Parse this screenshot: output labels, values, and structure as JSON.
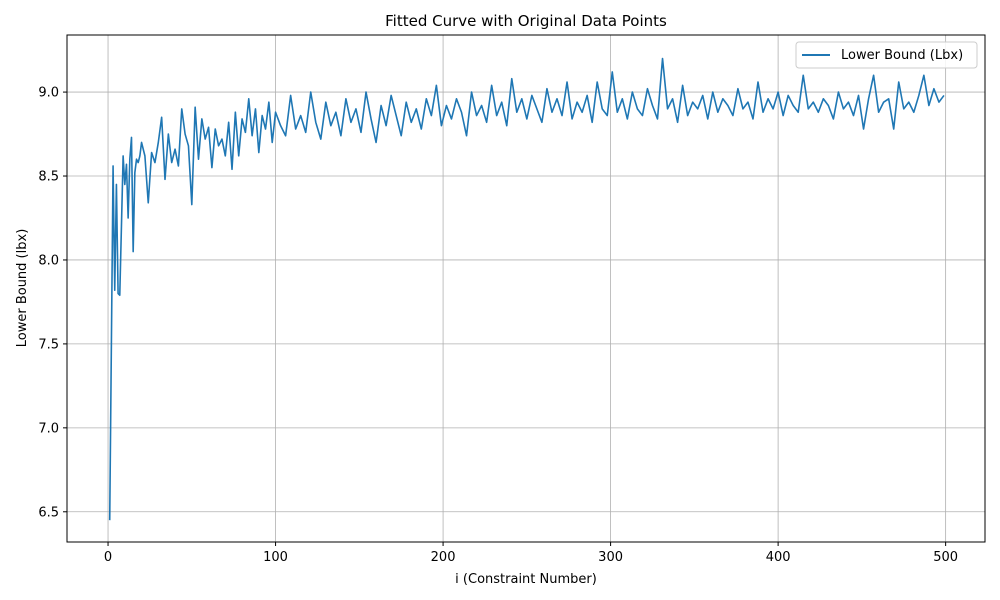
{
  "chart_data": {
    "type": "line",
    "title": "Fitted Curve with Original Data Points",
    "xlabel": "i (Constraint Number)",
    "ylabel": "Lower Bound (lbx)",
    "xlim": [
      -24.5,
      523.5
    ],
    "ylim": [
      6.32,
      9.34
    ],
    "xticks": [
      0,
      100,
      200,
      300,
      400,
      500
    ],
    "yticks": [
      6.5,
      7.0,
      7.5,
      8.0,
      8.5,
      9.0
    ],
    "xtick_labels": [
      "0",
      "100",
      "200",
      "300",
      "400",
      "500"
    ],
    "ytick_labels": [
      "6.5",
      "7.0",
      "7.5",
      "8.0",
      "8.5",
      "9.0"
    ],
    "grid": true,
    "legend_position": "top-right",
    "series": [
      {
        "name": "Lower Bound (Lbx)",
        "color": "#1f77b4",
        "x": [
          1,
          2,
          3,
          4,
          5,
          6,
          7,
          8,
          9,
          10,
          11,
          12,
          13,
          14,
          15,
          16,
          17,
          18,
          19,
          20,
          22,
          24,
          26,
          28,
          30,
          32,
          34,
          36,
          38,
          40,
          42,
          44,
          46,
          48,
          50,
          52,
          54,
          56,
          58,
          60,
          62,
          64,
          66,
          68,
          70,
          72,
          74,
          76,
          78,
          80,
          82,
          84,
          86,
          88,
          90,
          92,
          94,
          96,
          98,
          100,
          103,
          106,
          109,
          112,
          115,
          118,
          121,
          124,
          127,
          130,
          133,
          136,
          139,
          142,
          145,
          148,
          151,
          154,
          157,
          160,
          163,
          166,
          169,
          172,
          175,
          178,
          181,
          184,
          187,
          190,
          193,
          196,
          199,
          202,
          205,
          208,
          211,
          214,
          217,
          220,
          223,
          226,
          229,
          232,
          235,
          238,
          241,
          244,
          247,
          250,
          253,
          256,
          259,
          262,
          265,
          268,
          271,
          274,
          277,
          280,
          283,
          286,
          289,
          292,
          295,
          298,
          301,
          304,
          307,
          310,
          313,
          316,
          319,
          322,
          325,
          328,
          331,
          334,
          337,
          340,
          343,
          346,
          349,
          352,
          355,
          358,
          361,
          364,
          367,
          370,
          373,
          376,
          379,
          382,
          385,
          388,
          391,
          394,
          397,
          400,
          403,
          406,
          409,
          412,
          415,
          418,
          421,
          424,
          427,
          430,
          433,
          436,
          439,
          442,
          445,
          448,
          451,
          454,
          457,
          460,
          463,
          466,
          469,
          472,
          475,
          478,
          481,
          484,
          487,
          490,
          493,
          496,
          499
        ],
        "y": [
          6.45,
          7.5,
          8.56,
          7.82,
          8.45,
          7.8,
          7.79,
          8.2,
          8.62,
          8.45,
          8.57,
          8.25,
          8.6,
          8.73,
          8.05,
          8.52,
          8.6,
          8.58,
          8.62,
          8.7,
          8.62,
          8.34,
          8.64,
          8.58,
          8.7,
          8.85,
          8.48,
          8.75,
          8.58,
          8.66,
          8.56,
          8.9,
          8.75,
          8.68,
          8.33,
          8.91,
          8.6,
          8.84,
          8.72,
          8.79,
          8.55,
          8.78,
          8.68,
          8.72,
          8.62,
          8.82,
          8.54,
          8.88,
          8.62,
          8.84,
          8.76,
          8.96,
          8.74,
          8.9,
          8.64,
          8.86,
          8.78,
          8.94,
          8.7,
          8.88,
          8.8,
          8.74,
          8.98,
          8.78,
          8.86,
          8.76,
          9.0,
          8.82,
          8.72,
          8.94,
          8.8,
          8.88,
          8.74,
          8.96,
          8.82,
          8.9,
          8.76,
          9.0,
          8.84,
          8.7,
          8.92,
          8.8,
          8.98,
          8.86,
          8.74,
          8.94,
          8.82,
          8.9,
          8.78,
          8.96,
          8.86,
          9.04,
          8.8,
          8.92,
          8.84,
          8.96,
          8.88,
          8.74,
          9.0,
          8.86,
          8.92,
          8.82,
          9.04,
          8.86,
          8.94,
          8.8,
          9.08,
          8.88,
          8.96,
          8.84,
          8.98,
          8.9,
          8.82,
          9.02,
          8.88,
          8.96,
          8.86,
          9.06,
          8.84,
          8.94,
          8.88,
          8.98,
          8.82,
          9.06,
          8.9,
          8.86,
          9.12,
          8.88,
          8.96,
          8.84,
          9.0,
          8.9,
          8.86,
          9.02,
          8.92,
          8.84,
          9.2,
          8.9,
          8.96,
          8.82,
          9.04,
          8.86,
          8.94,
          8.9,
          8.98,
          8.84,
          9.0,
          8.88,
          8.96,
          8.92,
          8.86,
          9.02,
          8.9,
          8.94,
          8.84,
          9.06,
          8.88,
          8.96,
          8.9,
          9.0,
          8.86,
          8.98,
          8.92,
          8.88,
          9.1,
          8.9,
          8.94,
          8.88,
          8.96,
          8.92,
          8.84,
          9.0,
          8.9,
          8.94,
          8.86,
          8.98,
          8.78,
          8.96,
          9.1,
          8.88,
          8.94,
          8.96,
          8.78,
          9.06,
          8.9,
          8.94,
          8.88,
          8.98,
          9.1,
          8.92,
          9.02,
          8.94,
          8.98
        ]
      }
    ]
  }
}
